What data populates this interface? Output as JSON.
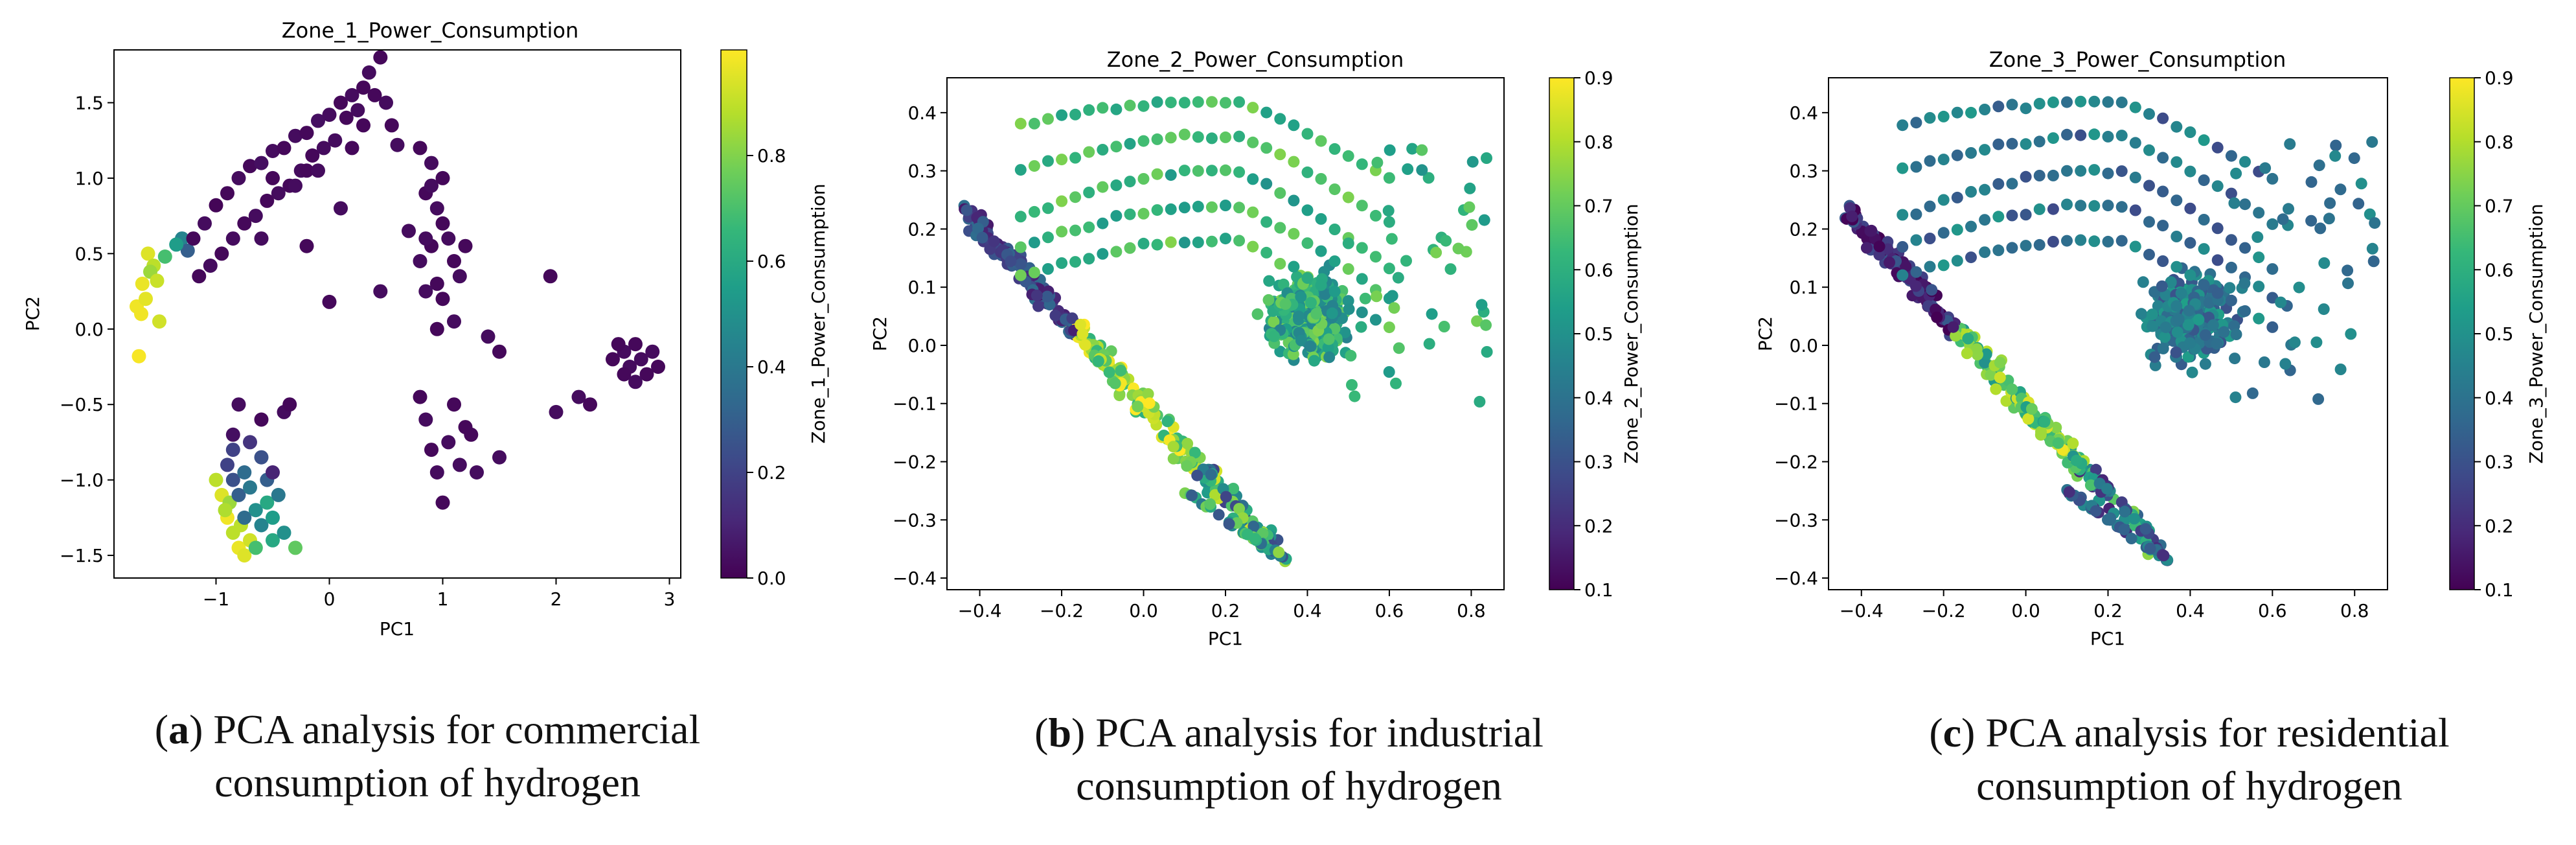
{
  "colormap": [
    "#440154",
    "#482878",
    "#3e4989",
    "#31688e",
    "#26828e",
    "#1f9e89",
    "#35b779",
    "#6ece58",
    "#b5de2b",
    "#fde725"
  ],
  "captions": [
    {
      "letter": "a",
      "line1": " PCA analysis for commercial",
      "line2": "consumption of hydrogen"
    },
    {
      "letter": "b",
      "line1": " PCA analysis for industrial",
      "line2": "consumption of hydrogen"
    },
    {
      "letter": "c",
      "line1": " PCA analysis for residential",
      "line2": "consumption of hydrogen"
    }
  ],
  "chart_data": [
    {
      "type": "scatter",
      "title": "Zone_1_Power_Consumption",
      "xlabel": "PC1",
      "ylabel": "PC2",
      "xlim": [
        -1.9,
        3.1
      ],
      "ylim": [
        -1.65,
        1.85
      ],
      "xticks": [
        -1,
        0,
        1,
        2,
        3
      ],
      "yticks": [
        -1.5,
        -1.0,
        -0.5,
        0.0,
        0.5,
        1.0,
        1.5
      ],
      "colorbar": {
        "label": "Zone_1_Power_Consumption",
        "range": [
          0,
          1
        ],
        "ticks": [
          0.0,
          0.2,
          0.4,
          0.6,
          0.8
        ]
      },
      "points": [
        [
          -1.6,
          0.5,
          0.95
        ],
        [
          -1.65,
          0.3,
          0.97
        ],
        [
          -1.7,
          0.15,
          0.98
        ],
        [
          -1.55,
          0.42,
          0.9
        ],
        [
          -1.62,
          0.2,
          0.96
        ],
        [
          -1.68,
          -0.18,
          0.99
        ],
        [
          -1.5,
          0.05,
          0.93
        ],
        [
          -1.58,
          0.38,
          0.85
        ],
        [
          -1.45,
          0.48,
          0.7
        ],
        [
          -1.3,
          0.6,
          0.45
        ],
        [
          -1.25,
          0.52,
          0.3
        ],
        [
          -1.35,
          0.56,
          0.55
        ],
        [
          -1.52,
          0.32,
          0.92
        ],
        [
          -1.66,
          0.1,
          0.98
        ],
        [
          -1.2,
          0.6,
          0.02
        ],
        [
          -1.1,
          0.7,
          0.03
        ],
        [
          -1.0,
          0.82,
          0.01
        ],
        [
          -0.9,
          0.9,
          0.02
        ],
        [
          -0.8,
          1.0,
          0.03
        ],
        [
          -0.7,
          1.08,
          0.02
        ],
        [
          -0.6,
          1.1,
          0.04
        ],
        [
          -0.5,
          1.18,
          0.03
        ],
        [
          -0.4,
          1.2,
          0.02
        ],
        [
          -0.3,
          1.28,
          0.03
        ],
        [
          -0.2,
          1.3,
          0.02
        ],
        [
          -0.1,
          1.38,
          0.04
        ],
        [
          0.0,
          1.42,
          0.03
        ],
        [
          0.1,
          1.5,
          0.02
        ],
        [
          0.2,
          1.55,
          0.03
        ],
        [
          0.3,
          1.6,
          0.02
        ],
        [
          0.35,
          1.7,
          0.03
        ],
        [
          0.45,
          1.8,
          0.02
        ],
        [
          0.5,
          1.5,
          0.03
        ],
        [
          0.55,
          1.35,
          0.02
        ],
        [
          0.6,
          1.22,
          0.03
        ],
        [
          0.4,
          1.55,
          0.02
        ],
        [
          0.25,
          1.45,
          0.03
        ],
        [
          0.15,
          1.4,
          0.02
        ],
        [
          -0.05,
          1.2,
          0.03
        ],
        [
          -0.15,
          1.15,
          0.02
        ],
        [
          -0.25,
          1.05,
          0.03
        ],
        [
          -0.35,
          0.95,
          0.02
        ],
        [
          -0.45,
          0.9,
          0.03
        ],
        [
          -0.55,
          0.85,
          0.02
        ],
        [
          -0.65,
          0.75,
          0.03
        ],
        [
          -0.75,
          0.7,
          0.02
        ],
        [
          -0.85,
          0.6,
          0.03
        ],
        [
          -0.95,
          0.5,
          0.02
        ],
        [
          -1.05,
          0.42,
          0.03
        ],
        [
          -1.15,
          0.35,
          0.02
        ],
        [
          -0.3,
          0.95,
          0.03
        ],
        [
          -0.2,
          1.05,
          0.02
        ],
        [
          0.05,
          1.25,
          0.03
        ],
        [
          0.3,
          1.35,
          0.02
        ],
        [
          -0.6,
          0.6,
          0.03
        ],
        [
          -0.2,
          0.55,
          0.02
        ],
        [
          0.1,
          0.8,
          0.03
        ],
        [
          -0.5,
          1.0,
          0.02
        ],
        [
          -0.1,
          1.05,
          0.03
        ],
        [
          0.2,
          1.2,
          0.02
        ],
        [
          0.8,
          1.2,
          0.02
        ],
        [
          0.9,
          1.1,
          0.03
        ],
        [
          0.85,
          0.9,
          0.02
        ],
        [
          0.95,
          0.8,
          0.03
        ],
        [
          1.0,
          0.7,
          0.02
        ],
        [
          1.05,
          0.6,
          0.03
        ],
        [
          0.9,
          0.55,
          0.02
        ],
        [
          0.8,
          0.45,
          0.03
        ],
        [
          1.1,
          0.45,
          0.02
        ],
        [
          1.15,
          0.35,
          0.03
        ],
        [
          0.95,
          0.3,
          0.02
        ],
        [
          0.85,
          0.25,
          0.03
        ],
        [
          1.0,
          0.2,
          0.02
        ],
        [
          1.1,
          0.05,
          0.03
        ],
        [
          0.95,
          0.0,
          0.02
        ],
        [
          0.9,
          0.95,
          0.03
        ],
        [
          1.0,
          1.0,
          0.02
        ],
        [
          0.85,
          0.6,
          0.03
        ],
        [
          1.2,
          0.55,
          0.02
        ],
        [
          0.7,
          0.65,
          0.03
        ],
        [
          0.0,
          0.18,
          0.02
        ],
        [
          0.45,
          0.25,
          0.03
        ],
        [
          2.5,
          -0.2,
          0.02
        ],
        [
          2.6,
          -0.15,
          0.03
        ],
        [
          2.7,
          -0.1,
          0.02
        ],
        [
          2.75,
          -0.2,
          0.03
        ],
        [
          2.8,
          -0.3,
          0.02
        ],
        [
          2.65,
          -0.25,
          0.03
        ],
        [
          2.55,
          -0.1,
          0.02
        ],
        [
          2.85,
          -0.15,
          0.03
        ],
        [
          2.9,
          -0.25,
          0.02
        ],
        [
          2.7,
          -0.35,
          0.03
        ],
        [
          2.6,
          -0.3,
          0.02
        ],
        [
          1.4,
          -0.05,
          0.03
        ],
        [
          1.5,
          -0.15,
          0.02
        ],
        [
          2.2,
          -0.45,
          0.03
        ],
        [
          2.3,
          -0.5,
          0.02
        ],
        [
          2.0,
          -0.55,
          0.03
        ],
        [
          1.95,
          0.35,
          0.02
        ],
        [
          0.8,
          -0.45,
          0.02
        ],
        [
          0.85,
          -0.6,
          0.03
        ],
        [
          0.9,
          -0.8,
          0.02
        ],
        [
          0.95,
          -0.95,
          0.03
        ],
        [
          1.0,
          -1.15,
          0.02
        ],
        [
          1.05,
          -0.75,
          0.03
        ],
        [
          1.1,
          -0.5,
          0.02
        ],
        [
          1.15,
          -0.9,
          0.03
        ],
        [
          1.2,
          -0.65,
          0.02
        ],
        [
          1.3,
          -0.95,
          0.03
        ],
        [
          1.25,
          -0.7,
          0.02
        ],
        [
          1.5,
          -0.85,
          0.03
        ],
        [
          -0.8,
          -0.5,
          0.03
        ],
        [
          -0.6,
          -0.6,
          0.02
        ],
        [
          -0.4,
          -0.55,
          0.03
        ],
        [
          -0.35,
          -0.5,
          0.02
        ],
        [
          -0.85,
          -0.7,
          0.04
        ],
        [
          -1.0,
          -1.0,
          0.9
        ],
        [
          -0.95,
          -1.1,
          0.95
        ],
        [
          -0.9,
          -1.25,
          0.98
        ],
        [
          -0.85,
          -1.35,
          0.9
        ],
        [
          -0.8,
          -1.45,
          0.97
        ],
        [
          -0.75,
          -1.5,
          0.95
        ],
        [
          -0.88,
          -1.15,
          0.85
        ],
        [
          -0.78,
          -1.3,
          0.9
        ],
        [
          -0.7,
          -1.4,
          0.93
        ],
        [
          -0.92,
          -1.2,
          0.88
        ],
        [
          -0.9,
          -0.9,
          0.2
        ],
        [
          -0.85,
          -1.0,
          0.25
        ],
        [
          -0.8,
          -1.1,
          0.3
        ],
        [
          -0.75,
          -0.95,
          0.35
        ],
        [
          -0.7,
          -1.05,
          0.4
        ],
        [
          -0.65,
          -1.2,
          0.5
        ],
        [
          -0.6,
          -1.3,
          0.45
        ],
        [
          -0.55,
          -1.15,
          0.6
        ],
        [
          -0.5,
          -1.25,
          0.55
        ],
        [
          -0.45,
          -1.1,
          0.4
        ],
        [
          -0.6,
          -0.85,
          0.25
        ],
        [
          -0.55,
          -1.0,
          0.3
        ],
        [
          -0.7,
          -0.75,
          0.15
        ],
        [
          -0.5,
          -0.95,
          0.1
        ],
        [
          -0.65,
          -1.45,
          0.7
        ],
        [
          -0.5,
          -1.4,
          0.6
        ],
        [
          -0.3,
          -1.45,
          0.75
        ],
        [
          -0.4,
          -1.35,
          0.5
        ],
        [
          -0.75,
          -1.25,
          0.35
        ],
        [
          -0.85,
          -0.8,
          0.2
        ]
      ]
    },
    {
      "type": "scatter",
      "title": "Zone_2_Power_Consumption",
      "xlabel": "PC1",
      "ylabel": "PC2",
      "xlim": [
        -0.48,
        0.88
      ],
      "ylim": [
        -0.42,
        0.46
      ],
      "xticks": [
        -0.4,
        -0.2,
        0.0,
        0.2,
        0.4,
        0.6,
        0.8
      ],
      "yticks": [
        -0.4,
        -0.3,
        -0.2,
        -0.1,
        0.0,
        0.1,
        0.2,
        0.3,
        0.4
      ],
      "colorbar": {
        "label": "Zone_2_Power_Consumption",
        "range": [
          0.1,
          0.9
        ],
        "ticks": [
          0.1,
          0.2,
          0.3,
          0.4,
          0.5,
          0.6,
          0.7,
          0.8,
          0.9
        ]
      },
      "points": []
    },
    {
      "type": "scatter",
      "title": "Zone_3_Power_Consumption",
      "xlabel": "PC1",
      "ylabel": "PC2",
      "xlim": [
        -0.48,
        0.88
      ],
      "ylim": [
        -0.42,
        0.46
      ],
      "xticks": [
        -0.4,
        -0.2,
        0.0,
        0.2,
        0.4,
        0.6,
        0.8
      ],
      "yticks": [
        -0.4,
        -0.3,
        -0.2,
        -0.1,
        0.0,
        0.1,
        0.2,
        0.3,
        0.4
      ],
      "colorbar": {
        "label": "Zone_3_Power_Consumption",
        "range": [
          0.1,
          0.9
        ],
        "ticks": [
          0.1,
          0.2,
          0.3,
          0.4,
          0.5,
          0.6,
          0.7,
          0.8,
          0.9
        ]
      },
      "points": []
    }
  ]
}
